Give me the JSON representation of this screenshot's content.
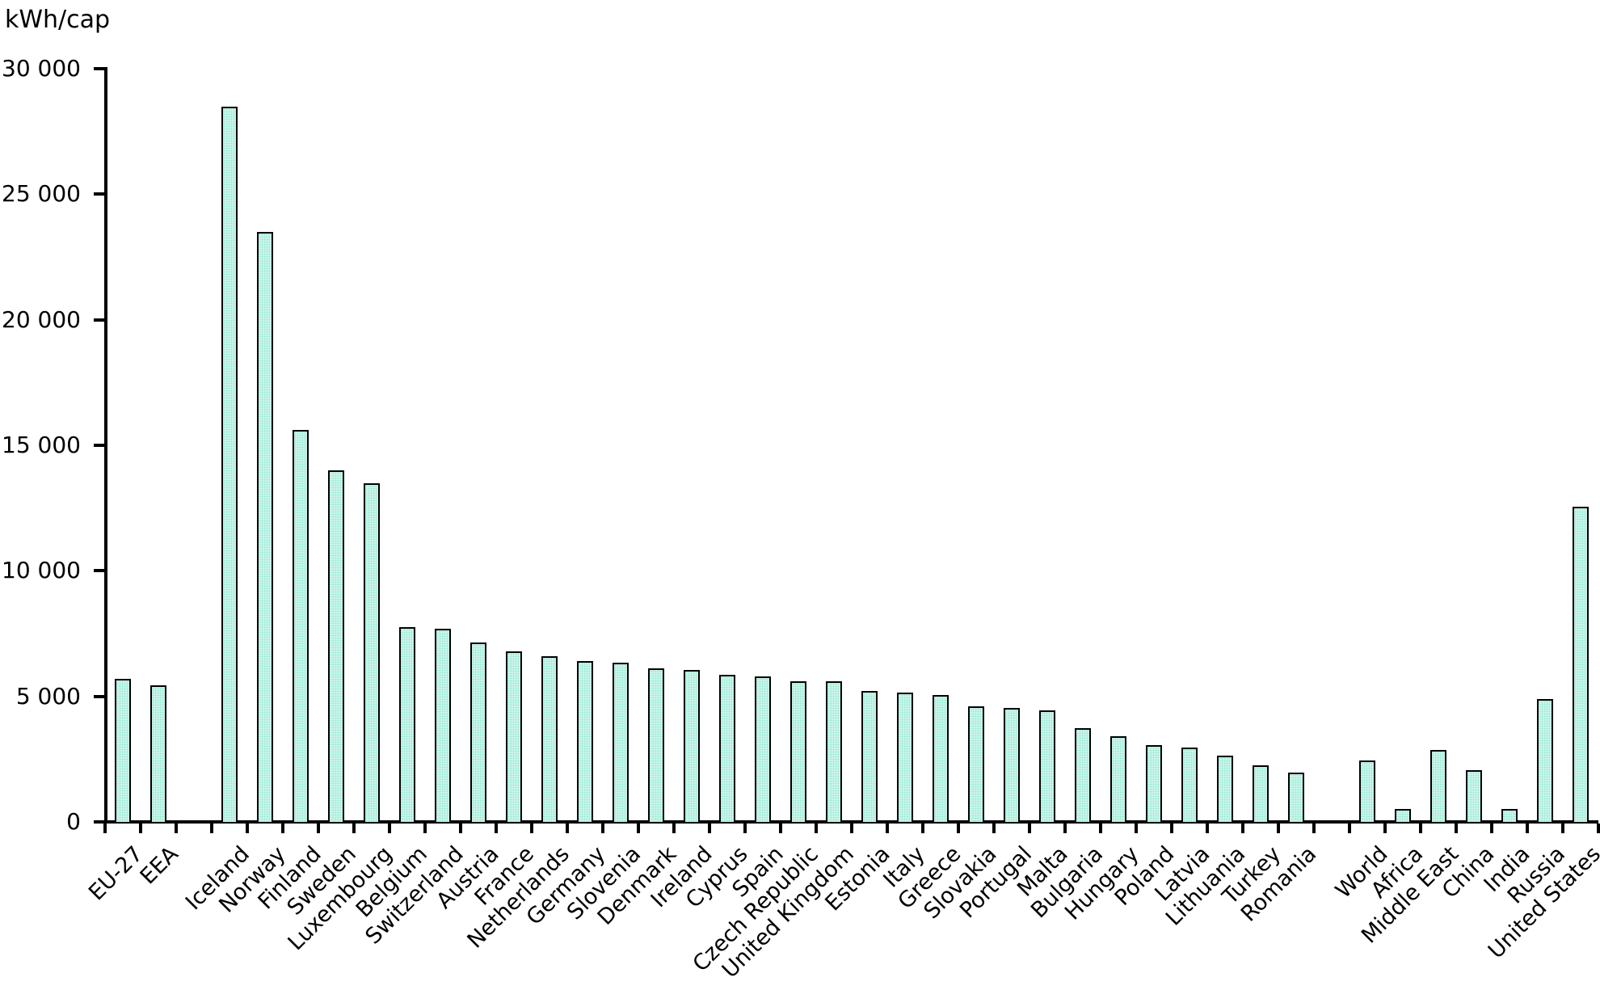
{
  "chart_data": {
    "type": "bar",
    "title": "",
    "ylabel": "kWh/cap",
    "xlabel": "",
    "ylim": [
      0,
      30000
    ],
    "grid": false,
    "legend": false,
    "y_ticks": [
      {
        "value": 0,
        "label": "0"
      },
      {
        "value": 5000,
        "label": "5 000"
      },
      {
        "value": 10000,
        "label": "10 000"
      },
      {
        "value": 15000,
        "label": "15 000"
      },
      {
        "value": 20000,
        "label": "20 000"
      },
      {
        "value": 25000,
        "label": "25 000"
      },
      {
        "value": 30000,
        "label": "30 000"
      }
    ],
    "categories": [
      "EU-27",
      "EEA",
      "Iceland",
      "Norway",
      "Finland",
      "Sweden",
      "Luxembourg",
      "Belgium",
      "Switzerland",
      "Austria",
      "France",
      "Netherlands",
      "Germany",
      "Slovenia",
      "Denmark",
      "Ireland",
      "Cyprus",
      "Spain",
      "Czech Republic",
      "United Kingdom",
      "Estonia",
      "Italy",
      "Greece",
      "Slovakia",
      "Portugal",
      "Malta",
      "Bulgaria",
      "Hungary",
      "Poland",
      "Latvia",
      "Lithuania",
      "Turkey",
      "Romania",
      "World",
      "Africa",
      "Middle East",
      "China",
      "India",
      "Russia",
      "United States"
    ],
    "values": [
      5700,
      5450,
      28500,
      23500,
      15600,
      14000,
      13500,
      7750,
      7700,
      7150,
      6800,
      6600,
      6400,
      6350,
      6100,
      6050,
      5850,
      5800,
      5600,
      5600,
      5200,
      5150,
      5050,
      4600,
      4550,
      4450,
      3750,
      3400,
      3050,
      2950,
      2650,
      2250,
      1950,
      2450,
      500,
      2850,
      2050,
      500,
      4900,
      12550
    ],
    "gap_after_indices": [
      1,
      32
    ],
    "colors": {
      "bar_fill": "#dffaf2",
      "bar_dot": "#8fe6d2",
      "bar_border": "#000000",
      "axis": "#000000",
      "text": "#000000",
      "background": "#ffffff"
    }
  }
}
